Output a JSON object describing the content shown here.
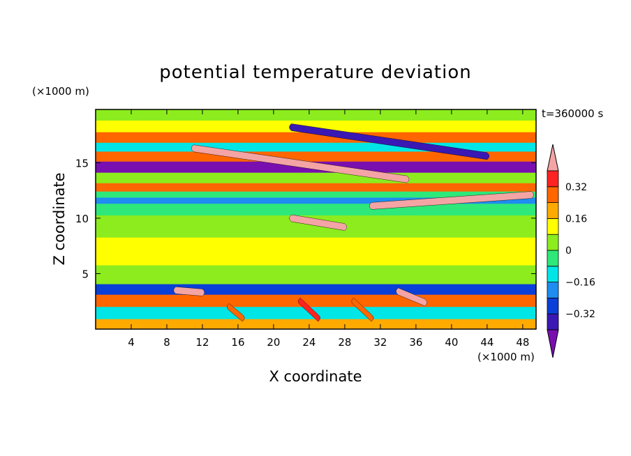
{
  "chart_data": {
    "type": "heatmap",
    "title": "potential temperature deviation",
    "xlabel": "X coordinate",
    "ylabel": "Z coordinate",
    "x_unit": "(×1000 m)",
    "y_unit": "(×1000 m)",
    "time_label": "t=360000 s",
    "xlim": [
      0,
      49.5
    ],
    "ylim": [
      0,
      19.8
    ],
    "x_ticks": [
      4,
      8,
      12,
      16,
      20,
      24,
      28,
      32,
      36,
      40,
      44,
      48
    ],
    "y_ticks": [
      5,
      10,
      15
    ],
    "colorbar": {
      "levels": [
        -0.4,
        -0.32,
        -0.24,
        -0.16,
        -0.08,
        0,
        0.08,
        0.16,
        0.24,
        0.32,
        0.4
      ],
      "tick_labels": [
        "0.32",
        "0.16",
        "0",
        "−0.16",
        "−0.32"
      ],
      "tick_values": [
        0.32,
        0.16,
        0,
        -0.16,
        -0.32
      ],
      "colors": [
        "#7a0fb0",
        "#3a18b4",
        "#0a3fd8",
        "#1e8cf0",
        "#00e6e6",
        "#2ee87a",
        "#8cec1e",
        "#ffff00",
        "#ffaa00",
        "#ff6600",
        "#ff2222",
        "#f4a4a4"
      ],
      "extend": "both"
    },
    "bands": [
      {
        "z": 19.3,
        "value": 0.02
      },
      {
        "z": 18.3,
        "value": 0.1
      },
      {
        "z": 17.2,
        "value": 0.25
      },
      {
        "z": 16.4,
        "value": -0.1
      },
      {
        "z": 15.6,
        "value": 0.3
      },
      {
        "z": 14.6,
        "value": -0.45
      },
      {
        "z": 13.6,
        "value": 0.02
      },
      {
        "z": 12.7,
        "value": 0.3
      },
      {
        "z": 12.1,
        "value": -0.05
      },
      {
        "z": 11.6,
        "value": -0.2
      },
      {
        "z": 11.0,
        "value": -0.05
      },
      {
        "z": 9.5,
        "value": 0.04
      },
      {
        "z": 7.0,
        "value": 0.08
      },
      {
        "z": 4.5,
        "value": 0.06
      },
      {
        "z": 3.6,
        "value": -0.3
      },
      {
        "z": 2.6,
        "value": 0.25
      },
      {
        "z": 1.4,
        "value": -0.12
      },
      {
        "z": 0.4,
        "value": 0.2
      }
    ],
    "features": [
      {
        "x0": 11,
        "x1": 35,
        "z0": 16.3,
        "z1": 13.5,
        "value": 0.45
      },
      {
        "x0": 22,
        "x1": 44,
        "z0": 18.2,
        "z1": 15.6,
        "value": -0.38
      },
      {
        "x0": 31,
        "x1": 49,
        "z0": 11.1,
        "z1": 12.1,
        "value": 0.45
      },
      {
        "x0": 22,
        "x1": 28,
        "z0": 10.0,
        "z1": 9.2,
        "value": 0.42
      },
      {
        "x0": 9,
        "x1": 12,
        "z0": 3.5,
        "z1": 3.3,
        "value": 0.45
      },
      {
        "x0": 34,
        "x1": 37,
        "z0": 3.4,
        "z1": 2.4,
        "value": 0.45
      },
      {
        "x0": 15,
        "x1": 16.5,
        "z0": 2.0,
        "z1": 1.0,
        "value": 0.3
      },
      {
        "x0": 23,
        "x1": 25,
        "z0": 2.5,
        "z1": 1.0,
        "value": 0.32
      },
      {
        "x0": 29,
        "x1": 31,
        "z0": 2.5,
        "z1": 1.0,
        "value": 0.3
      }
    ]
  }
}
